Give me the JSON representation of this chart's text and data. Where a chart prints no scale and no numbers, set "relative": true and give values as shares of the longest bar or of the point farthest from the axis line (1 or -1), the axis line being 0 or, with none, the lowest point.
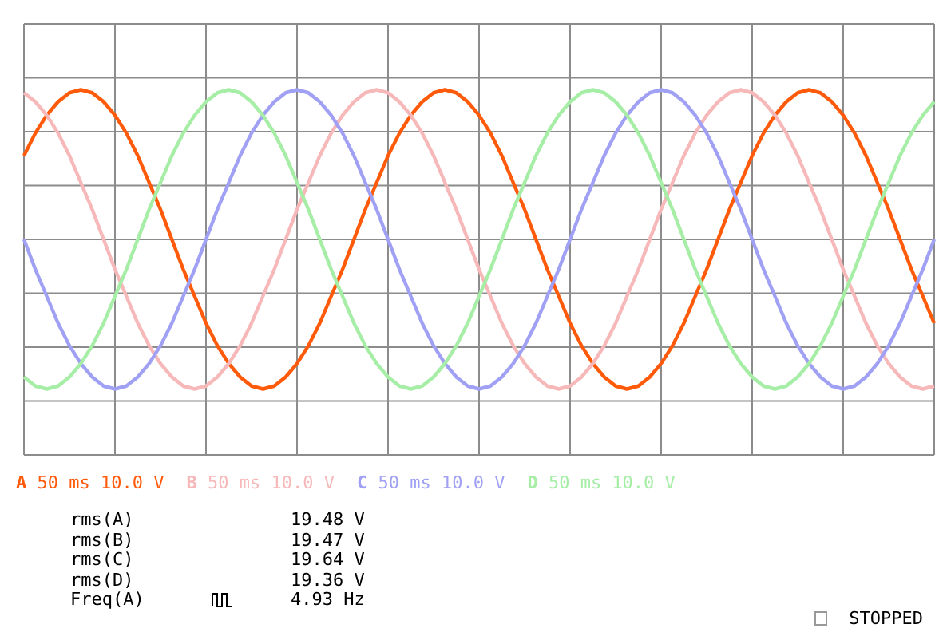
{
  "chart_data": {
    "type": "line",
    "relative": true,
    "grid": true,
    "legend": "bottom",
    "tick_labels": false,
    "categories": [
      null,
      null,
      null,
      null,
      null,
      null,
      null,
      null,
      null,
      null,
      null,
      null,
      null,
      null,
      null,
      null,
      null,
      null,
      null,
      null,
      null,
      null,
      null,
      null,
      null,
      null,
      null,
      null,
      null,
      null,
      null,
      null,
      null,
      null,
      null,
      null,
      null,
      null,
      null,
      null,
      null,
      null,
      null,
      null,
      null,
      null,
      null,
      null,
      null,
      null,
      null,
      null,
      null,
      null,
      null,
      null,
      null,
      null,
      null,
      null,
      null,
      null,
      null,
      null,
      null,
      null,
      null,
      null,
      null,
      null,
      null,
      null,
      null,
      null,
      null,
      null,
      null,
      null,
      null,
      null,
      null
    ],
    "series": [
      {
        "name": "A",
        "color": "#ff5a0a",
        "values": [
          0.56,
          0.71,
          0.83,
          0.92,
          0.98,
          1,
          0.98,
          0.92,
          0.83,
          0.71,
          0.56,
          0.38,
          0.2,
          0,
          -0.2,
          -0.38,
          -0.56,
          -0.71,
          -0.83,
          -0.92,
          -0.98,
          -1,
          -0.98,
          -0.92,
          -0.83,
          -0.71,
          -0.56,
          -0.38,
          -0.2,
          0,
          0.2,
          0.38,
          0.56,
          0.71,
          0.83,
          0.92,
          0.98,
          1,
          0.98,
          0.92,
          0.83,
          0.71,
          0.56,
          0.38,
          0.2,
          0,
          -0.2,
          -0.38,
          -0.56,
          -0.71,
          -0.83,
          -0.92,
          -0.98,
          -1,
          -0.98,
          -0.92,
          -0.83,
          -0.71,
          -0.56,
          -0.38,
          -0.2,
          0,
          0.2,
          0.38,
          0.56,
          0.71,
          0.83,
          0.92,
          0.98,
          1,
          0.98,
          0.92,
          0.83,
          0.71,
          0.56,
          0.38,
          0.2,
          0,
          -0.2,
          -0.38,
          -0.56
        ]
      },
      {
        "name": "B",
        "color": "#f6b8b8",
        "values": [
          0.98,
          0.92,
          0.83,
          0.71,
          0.56,
          0.38,
          0.2,
          0,
          -0.2,
          -0.38,
          -0.56,
          -0.71,
          -0.83,
          -0.92,
          -0.98,
          -1,
          -0.98,
          -0.92,
          -0.83,
          -0.71,
          -0.56,
          -0.38,
          -0.2,
          0,
          0.2,
          0.38,
          0.56,
          0.71,
          0.83,
          0.92,
          0.98,
          1,
          0.98,
          0.92,
          0.83,
          0.71,
          0.56,
          0.38,
          0.2,
          0,
          -0.2,
          -0.38,
          -0.56,
          -0.71,
          -0.83,
          -0.92,
          -0.98,
          -1,
          -0.98,
          -0.92,
          -0.83,
          -0.71,
          -0.56,
          -0.38,
          -0.2,
          0,
          0.2,
          0.38,
          0.56,
          0.71,
          0.83,
          0.92,
          0.98,
          1,
          0.98,
          0.92,
          0.83,
          0.71,
          0.56,
          0.38,
          0.2,
          0,
          -0.2,
          -0.38,
          -0.56,
          -0.71,
          -0.83,
          -0.92,
          -0.98,
          -1,
          -0.98
        ]
      },
      {
        "name": "C",
        "color": "#a0a0f4",
        "values": [
          0,
          -0.2,
          -0.38,
          -0.56,
          -0.71,
          -0.83,
          -0.92,
          -0.98,
          -1,
          -0.98,
          -0.92,
          -0.83,
          -0.71,
          -0.56,
          -0.38,
          -0.2,
          0,
          0.2,
          0.38,
          0.56,
          0.71,
          0.83,
          0.92,
          0.98,
          1,
          0.98,
          0.92,
          0.83,
          0.71,
          0.56,
          0.38,
          0.2,
          0,
          -0.2,
          -0.38,
          -0.56,
          -0.71,
          -0.83,
          -0.92,
          -0.98,
          -1,
          -0.98,
          -0.92,
          -0.83,
          -0.71,
          -0.56,
          -0.38,
          -0.2,
          0,
          0.2,
          0.38,
          0.56,
          0.71,
          0.83,
          0.92,
          0.98,
          1,
          0.98,
          0.92,
          0.83,
          0.71,
          0.56,
          0.38,
          0.2,
          0,
          -0.2,
          -0.38,
          -0.56,
          -0.71,
          -0.83,
          -0.92,
          -0.98,
          -1,
          -0.98,
          -0.92,
          -0.83,
          -0.71,
          -0.56,
          -0.38,
          -0.2,
          0
        ]
      },
      {
        "name": "D",
        "color": "#a6eda6",
        "values": [
          -0.92,
          -0.98,
          -1,
          -0.98,
          -0.92,
          -0.83,
          -0.71,
          -0.56,
          -0.38,
          -0.2,
          0,
          0.2,
          0.38,
          0.56,
          0.71,
          0.83,
          0.92,
          0.98,
          1,
          0.98,
          0.92,
          0.83,
          0.71,
          0.56,
          0.38,
          0.2,
          0,
          -0.2,
          -0.38,
          -0.56,
          -0.71,
          -0.83,
          -0.92,
          -0.98,
          -1,
          -0.98,
          -0.92,
          -0.83,
          -0.71,
          -0.56,
          -0.38,
          -0.2,
          0,
          0.2,
          0.38,
          0.56,
          0.71,
          0.83,
          0.92,
          0.98,
          1,
          0.98,
          0.92,
          0.83,
          0.71,
          0.56,
          0.38,
          0.2,
          0,
          -0.2,
          -0.38,
          -0.56,
          -0.71,
          -0.83,
          -0.92,
          -0.98,
          -1,
          -0.98,
          -0.92,
          -0.83,
          -0.71,
          -0.56,
          -0.38,
          -0.2,
          0,
          0.2,
          0.38,
          0.56,
          0.71,
          0.83,
          0.92
        ]
      }
    ],
    "annotations": [
      "50 ms 10.0 V",
      "50 ms 10.0 V",
      "50 ms 10.0 V",
      "50 ms 10.0 V",
      "rms(A)  19.48 V",
      "rms(B)  19.47 V",
      "rms(C)  19.64 V",
      "rms(D)  19.36 V",
      "Freq(A)  4.93 Hz",
      "STOPPED"
    ]
  }
}
